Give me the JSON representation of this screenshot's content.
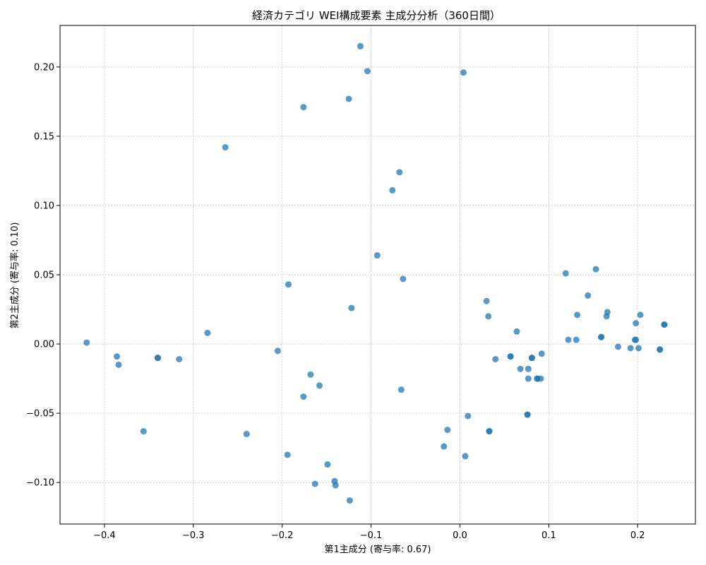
{
  "chart_data": {
    "type": "scatter",
    "title": "経済カテゴリ WEI構成要素 主成分分析（360日間）",
    "xlabel": "第1主成分 (寄与率: 0.67)",
    "ylabel": "第2主成分 (寄与率: 0.10)",
    "xlim": [
      -0.45,
      0.265
    ],
    "ylim": [
      -0.13,
      0.23
    ],
    "xticks": [
      -0.4,
      -0.3,
      -0.2,
      -0.1,
      0.0,
      0.1,
      0.2
    ],
    "xtick_labels": [
      "−0.4",
      "−0.3",
      "−0.2",
      "−0.1",
      "0.0",
      "0.1",
      "0.2"
    ],
    "yticks": [
      -0.1,
      -0.05,
      0.0,
      0.05,
      0.1,
      0.15,
      0.2
    ],
    "ytick_labels": [
      "−0.10",
      "−0.05",
      "0.00",
      "0.05",
      "0.10",
      "0.15",
      "0.20"
    ],
    "grid": true,
    "point_color": "#1f77b4",
    "points": [
      [
        -0.42,
        0.001
      ],
      [
        -0.386,
        -0.009
      ],
      [
        -0.384,
        -0.015
      ],
      [
        -0.356,
        -0.063
      ],
      [
        -0.34,
        -0.01
      ],
      [
        -0.34,
        -0.01
      ],
      [
        -0.316,
        -0.011
      ],
      [
        -0.284,
        0.008
      ],
      [
        -0.264,
        0.142
      ],
      [
        -0.24,
        -0.065
      ],
      [
        -0.205,
        -0.005
      ],
      [
        -0.194,
        -0.08
      ],
      [
        -0.193,
        0.043
      ],
      [
        -0.176,
        0.171
      ],
      [
        -0.176,
        -0.038
      ],
      [
        -0.168,
        -0.022
      ],
      [
        -0.163,
        -0.101
      ],
      [
        -0.158,
        -0.03
      ],
      [
        -0.149,
        -0.087
      ],
      [
        -0.141,
        -0.099
      ],
      [
        -0.14,
        -0.102
      ],
      [
        -0.125,
        0.177
      ],
      [
        -0.124,
        -0.113
      ],
      [
        -0.122,
        0.026
      ],
      [
        -0.112,
        0.215
      ],
      [
        -0.104,
        0.197
      ],
      [
        -0.093,
        0.064
      ],
      [
        -0.076,
        0.111
      ],
      [
        -0.068,
        0.124
      ],
      [
        -0.066,
        -0.033
      ],
      [
        -0.064,
        0.047
      ],
      [
        -0.018,
        -0.074
      ],
      [
        -0.014,
        -0.062
      ],
      [
        0.004,
        0.196
      ],
      [
        0.006,
        -0.081
      ],
      [
        0.009,
        -0.052
      ],
      [
        0.03,
        0.031
      ],
      [
        0.032,
        0.02
      ],
      [
        0.033,
        -0.063
      ],
      [
        0.033,
        -0.063
      ],
      [
        0.04,
        -0.011
      ],
      [
        0.057,
        -0.009
      ],
      [
        0.057,
        -0.009
      ],
      [
        0.064,
        0.009
      ],
      [
        0.068,
        -0.018
      ],
      [
        0.076,
        -0.051
      ],
      [
        0.076,
        -0.051
      ],
      [
        0.077,
        -0.018
      ],
      [
        0.077,
        -0.025
      ],
      [
        0.081,
        -0.01
      ],
      [
        0.081,
        -0.01
      ],
      [
        0.087,
        -0.025
      ],
      [
        0.087,
        -0.025
      ],
      [
        0.091,
        -0.025
      ],
      [
        0.092,
        -0.007
      ],
      [
        0.119,
        0.051
      ],
      [
        0.122,
        0.003
      ],
      [
        0.131,
        0.003
      ],
      [
        0.132,
        0.021
      ],
      [
        0.144,
        0.035
      ],
      [
        0.153,
        0.054
      ],
      [
        0.159,
        0.005
      ],
      [
        0.159,
        0.005
      ],
      [
        0.165,
        0.02
      ],
      [
        0.166,
        0.023
      ],
      [
        0.178,
        -0.002
      ],
      [
        0.192,
        -0.003
      ],
      [
        0.197,
        0.003
      ],
      [
        0.198,
        0.003
      ],
      [
        0.198,
        0.015
      ],
      [
        0.201,
        -0.003
      ],
      [
        0.203,
        0.021
      ],
      [
        0.225,
        -0.004
      ],
      [
        0.225,
        -0.004
      ],
      [
        0.23,
        0.014
      ],
      [
        0.23,
        0.014
      ]
    ]
  }
}
